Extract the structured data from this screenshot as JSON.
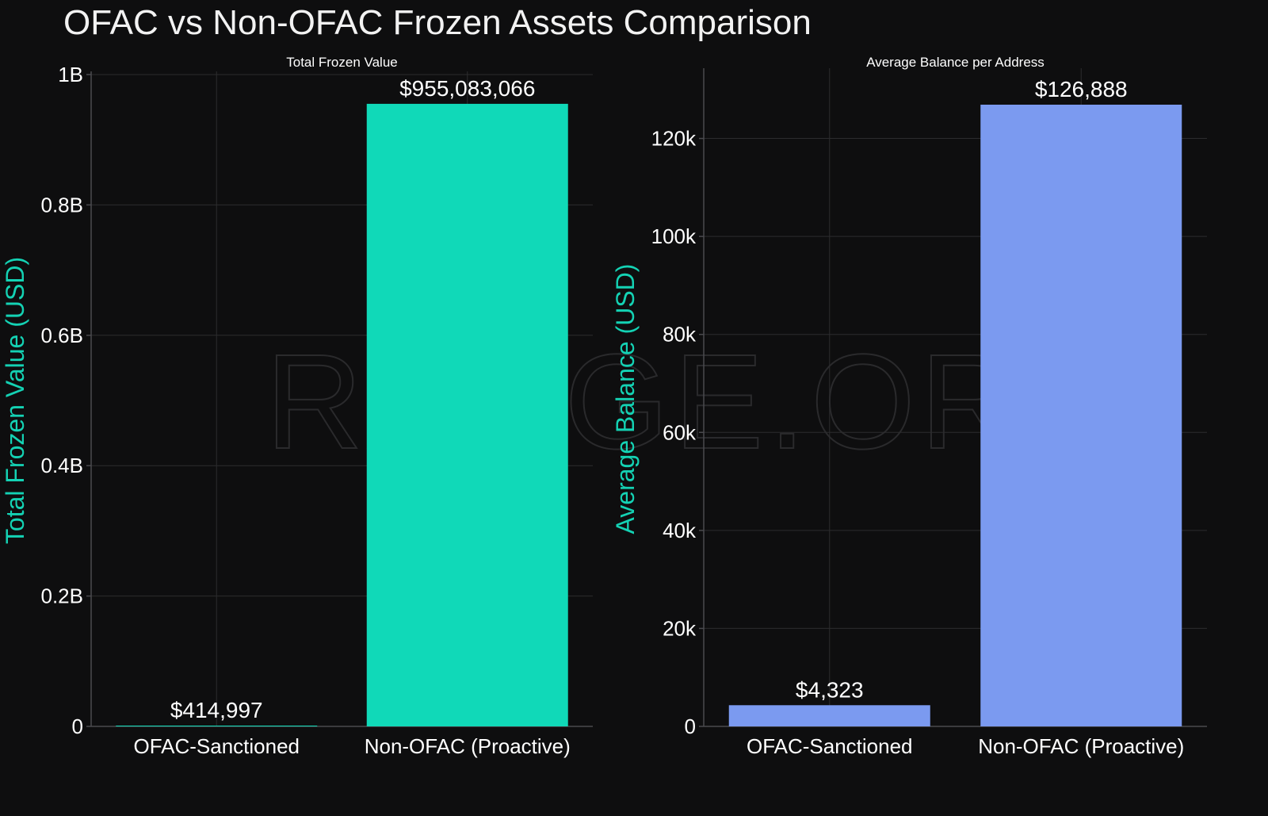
{
  "title": "OFAC vs Non-OFAC Frozen Assets Comparison",
  "watermark": "RANGE.ORG",
  "colors": {
    "background": "#0e0e0f",
    "axis_title": "#14d2b4",
    "left_bars": "#10d9b8",
    "right_bars": "#7b9af0"
  },
  "chart_data": [
    {
      "type": "bar",
      "title": "Total Frozen Value",
      "ylabel": "Total Frozen Value (USD)",
      "xlabel": "",
      "categories": [
        "OFAC-Sanctioned",
        "Non-OFAC (Proactive)"
      ],
      "values": [
        414997,
        955083066
      ],
      "data_labels": [
        "$414,997",
        "$955,083,066"
      ],
      "ylim": [
        0,
        1000000000
      ],
      "yticks": [
        0,
        200000000,
        400000000,
        600000000,
        800000000,
        1000000000
      ],
      "ytick_labels": [
        "0",
        "0.2B",
        "0.4B",
        "0.6B",
        "0.8B",
        "1B"
      ],
      "color": "#10d9b8",
      "grid": true
    },
    {
      "type": "bar",
      "title": "Average Balance per Address",
      "ylabel": "Average Balance (USD)",
      "xlabel": "",
      "categories": [
        "OFAC-Sanctioned",
        "Non-OFAC (Proactive)"
      ],
      "values": [
        4323,
        126888
      ],
      "data_labels": [
        "$4,323",
        "$126,888"
      ],
      "ylim": [
        0,
        126888
      ],
      "yticks": [
        0,
        20000,
        40000,
        60000,
        80000,
        100000,
        120000
      ],
      "ytick_labels": [
        "0",
        "20k",
        "40k",
        "60k",
        "80k",
        "100k",
        "120k"
      ],
      "color": "#7b9af0",
      "grid": true
    }
  ]
}
